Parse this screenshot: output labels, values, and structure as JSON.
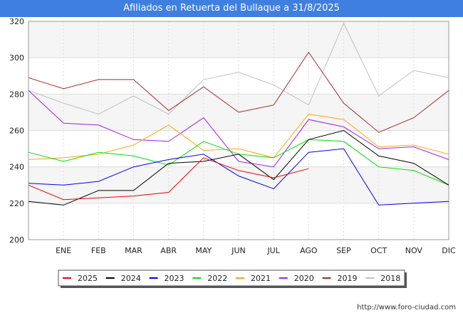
{
  "title": "Afiliados en Retuerta del Bullaque a 31/8/2025",
  "source": "http://www.foro-ciudad.com",
  "chart_data": {
    "type": "line",
    "title": "Afiliados en Retuerta del Bullaque a 31/8/2025",
    "xlabel": "",
    "ylabel": "",
    "categories": [
      "",
      "ENE",
      "FEB",
      "MAR",
      "ABR",
      "MAY",
      "JUN",
      "JUL",
      "AGO",
      "SEP",
      "OCT",
      "NOV",
      "DIC"
    ],
    "ylim": [
      200,
      320
    ],
    "yticks": [
      200,
      220,
      240,
      260,
      280,
      300,
      320
    ],
    "grid": "horizontal",
    "legend_position": "bottom",
    "series": [
      {
        "name": "2018",
        "color": "#c0c0c0",
        "values": [
          282,
          275,
          269,
          279,
          269,
          288,
          292,
          285,
          274,
          319,
          279,
          293,
          289
        ]
      },
      {
        "name": "2019",
        "color": "#a52a2a",
        "values": [
          289,
          283,
          288,
          288,
          271,
          284,
          270,
          274,
          303,
          275,
          259,
          267,
          282
        ]
      },
      {
        "name": "2020",
        "color": "#a020f0",
        "values": [
          282,
          264,
          263,
          255,
          254,
          267,
          243,
          240,
          266,
          262,
          250,
          251,
          244
        ]
      },
      {
        "name": "2021",
        "color": "#ffa500",
        "values": [
          244,
          245,
          247,
          252,
          263,
          249,
          250,
          245,
          269,
          266,
          251,
          252,
          247
        ]
      },
      {
        "name": "2022",
        "color": "#00e000",
        "values": [
          248,
          243,
          248,
          246,
          241,
          254,
          247,
          245,
          255,
          254,
          240,
          238,
          230
        ]
      },
      {
        "name": "2023",
        "color": "#0000ee",
        "values": [
          231,
          230,
          232,
          240,
          244,
          247,
          235,
          228,
          248,
          250,
          219,
          220,
          221
        ]
      },
      {
        "name": "2024",
        "color": "#000000",
        "values": [
          221,
          219,
          227,
          227,
          242,
          243,
          247,
          233,
          255,
          260,
          246,
          242,
          230
        ]
      },
      {
        "name": "2025",
        "color": "#ee0000",
        "values": [
          230,
          222,
          223,
          224,
          226,
          245,
          238,
          234,
          239,
          null,
          null,
          null,
          null
        ]
      }
    ],
    "legend_order": [
      "2025",
      "2024",
      "2023",
      "2022",
      "2021",
      "2020",
      "2019",
      "2018"
    ]
  }
}
